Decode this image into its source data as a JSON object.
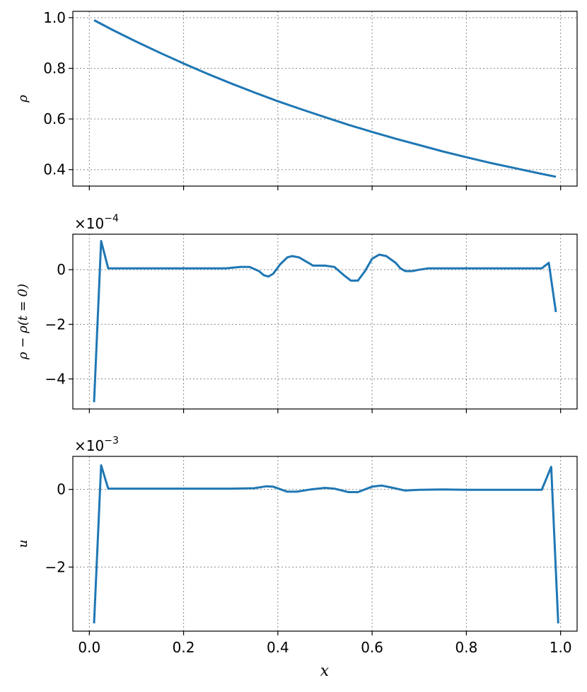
{
  "chart_data": [
    {
      "type": "line",
      "ylabel": "ρ",
      "xlim": [
        -0.035,
        1.035
      ],
      "ylim": [
        0.335,
        1.025
      ],
      "yticks": [
        0.4,
        0.6,
        0.8,
        1.0
      ],
      "ytick_labels": [
        "0.4",
        "0.6",
        "0.8",
        "1.0"
      ],
      "xticks": [
        0.0,
        0.2,
        0.4,
        0.6,
        0.8,
        1.0
      ],
      "grid": true,
      "series": [
        {
          "color": "#1f77b4",
          "x": [
            0.01,
            0.05,
            0.1,
            0.15,
            0.2,
            0.25,
            0.3,
            0.35,
            0.4,
            0.45,
            0.5,
            0.55,
            0.6,
            0.65,
            0.7,
            0.75,
            0.8,
            0.85,
            0.9,
            0.95,
            0.99
          ],
          "y": [
            0.99,
            0.951,
            0.905,
            0.861,
            0.819,
            0.779,
            0.741,
            0.705,
            0.67,
            0.638,
            0.607,
            0.577,
            0.549,
            0.522,
            0.497,
            0.472,
            0.449,
            0.427,
            0.407,
            0.387,
            0.372
          ]
        }
      ]
    },
    {
      "type": "line",
      "ylabel": "ρ − ρ(t = 0)",
      "offset_text": {
        "base": "×10",
        "exponent": "−4"
      },
      "xlim": [
        -0.035,
        1.035
      ],
      "ylim": [
        -5.1,
        1.3
      ],
      "yticks": [
        -4,
        -2,
        0
      ],
      "ytick_labels": [
        "−4",
        "−2",
        "0"
      ],
      "xticks": [
        0.0,
        0.2,
        0.4,
        0.6,
        0.8,
        1.0
      ],
      "grid": true,
      "series": [
        {
          "color": "#1f77b4",
          "x": [
            0.01,
            0.025,
            0.04,
            0.1,
            0.2,
            0.29,
            0.32,
            0.34,
            0.36,
            0.37,
            0.38,
            0.39,
            0.405,
            0.42,
            0.43,
            0.445,
            0.46,
            0.475,
            0.5,
            0.52,
            0.54,
            0.555,
            0.57,
            0.585,
            0.6,
            0.615,
            0.63,
            0.65,
            0.66,
            0.67,
            0.685,
            0.7,
            0.72,
            0.8,
            0.9,
            0.96,
            0.975,
            0.99
          ],
          "y": [
            -4.85,
            1.05,
            0.05,
            0.05,
            0.05,
            0.05,
            0.1,
            0.1,
            -0.05,
            -0.2,
            -0.25,
            -0.15,
            0.2,
            0.45,
            0.5,
            0.45,
            0.3,
            0.15,
            0.15,
            0.1,
            -0.2,
            -0.4,
            -0.4,
            -0.05,
            0.4,
            0.55,
            0.5,
            0.25,
            0.05,
            -0.05,
            -0.05,
            0.0,
            0.05,
            0.05,
            0.05,
            0.05,
            0.25,
            -1.55
          ]
        }
      ]
    },
    {
      "type": "line",
      "ylabel": "u",
      "xlabel": "x",
      "offset_text": {
        "base": "×10",
        "exponent": "−3"
      },
      "xlim": [
        -0.035,
        1.035
      ],
      "ylim": [
        -3.65,
        0.85
      ],
      "yticks": [
        -2,
        0
      ],
      "ytick_labels": [
        "−2",
        "0"
      ],
      "xticks": [
        0.0,
        0.2,
        0.4,
        0.6,
        0.8,
        1.0
      ],
      "xtick_labels": [
        "0.0",
        "0.2",
        "0.4",
        "0.6",
        "0.8",
        "1.0"
      ],
      "grid": true,
      "series": [
        {
          "color": "#1f77b4",
          "x": [
            0.01,
            0.025,
            0.04,
            0.1,
            0.2,
            0.3,
            0.35,
            0.375,
            0.39,
            0.42,
            0.44,
            0.47,
            0.5,
            0.52,
            0.55,
            0.57,
            0.6,
            0.62,
            0.64,
            0.67,
            0.7,
            0.75,
            0.8,
            0.9,
            0.96,
            0.98,
            0.995
          ],
          "y": [
            -3.45,
            0.62,
            0.02,
            0.02,
            0.02,
            0.02,
            0.03,
            0.08,
            0.07,
            -0.06,
            -0.06,
            0.0,
            0.04,
            0.02,
            -0.07,
            -0.07,
            0.07,
            0.1,
            0.05,
            -0.03,
            -0.01,
            0.0,
            -0.01,
            -0.01,
            -0.01,
            0.58,
            -3.45
          ]
        }
      ]
    }
  ]
}
